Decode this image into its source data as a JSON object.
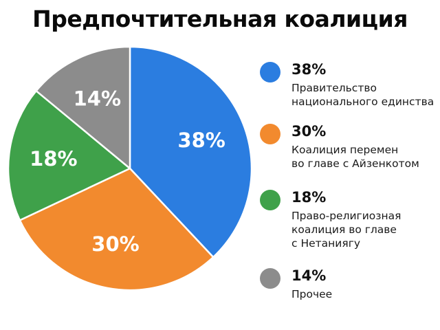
{
  "chart_data": {
    "type": "pie",
    "title": "Предпочтительная коалиция",
    "slices": [
      {
        "label": "Правительство\nнационального единства",
        "value": 38,
        "value_label": "38%",
        "color": "#2b7de0"
      },
      {
        "label": "Коалиция перемен\nво главе с Айзенкотом",
        "value": 30,
        "value_label": "30%",
        "color": "#f28a2e"
      },
      {
        "label": "Право-религиозная\nкоалиция во главе\nс Нетаниягу",
        "value": 18,
        "value_label": "18%",
        "color": "#3fa14a"
      },
      {
        "label": "Прочее",
        "value": 14,
        "value_label": "14%",
        "color": "#8c8c8c"
      }
    ],
    "legend_position": "right",
    "start_angle": "12 o'clock",
    "direction": "clockwise"
  }
}
